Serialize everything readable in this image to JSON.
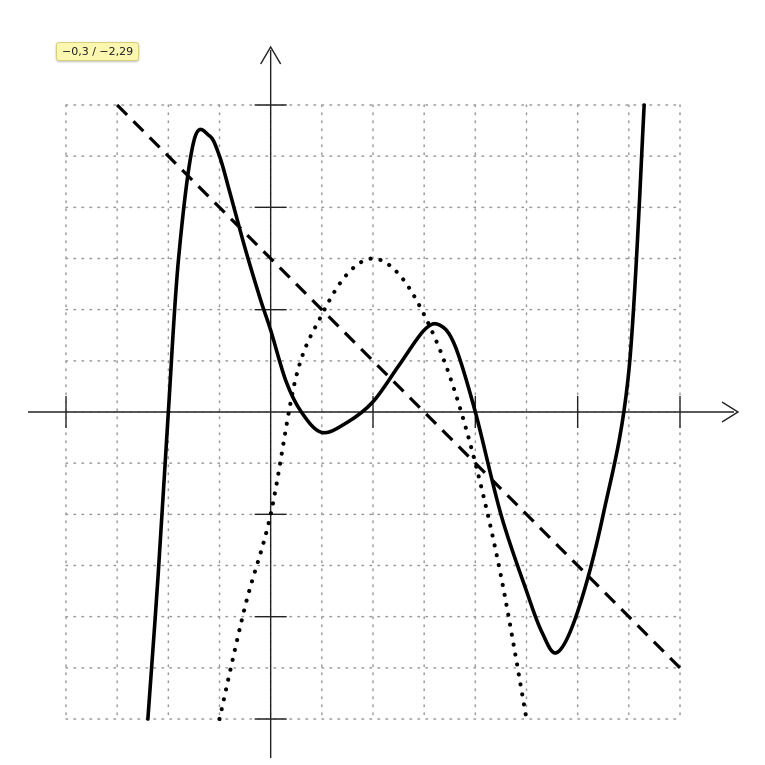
{
  "readout": {
    "coordinates": "−0,3 / −2,29"
  },
  "chart_data": {
    "type": "line",
    "title": "",
    "xlabel": "",
    "ylabel": "",
    "xlim": [
      -4,
      8
    ],
    "ylim": [
      -6,
      6
    ],
    "grid": true,
    "grid_style": "dotted",
    "axes": {
      "x_arrow": true,
      "y_arrow": true
    },
    "x_ticks": [
      -4,
      -2,
      2,
      4,
      6,
      8
    ],
    "y_ticks": [
      -6,
      -4,
      -2,
      2,
      4,
      6
    ],
    "series": [
      {
        "style": "solid",
        "color": "#000000",
        "x": [
          -2.4,
          -2.2,
          -2.0,
          -1.8,
          -1.5,
          -1.2,
          -1.0,
          -0.8,
          -0.5,
          -0.2,
          0.0,
          0.3,
          0.6,
          1.0,
          1.5,
          2.0,
          2.5,
          3.0,
          3.3,
          3.6,
          4.0,
          4.5,
          5.0,
          5.3,
          5.6,
          6.0,
          6.5,
          7.0,
          7.3
        ],
        "y": [
          -6.0,
          -3.2,
          0.0,
          3.0,
          5.3,
          5.4,
          5.0,
          4.3,
          3.2,
          2.2,
          1.6,
          0.6,
          0.0,
          -0.4,
          -0.2,
          0.2,
          0.9,
          1.6,
          1.7,
          1.3,
          0.0,
          -2.0,
          -3.5,
          -4.3,
          -4.7,
          -3.9,
          -2.0,
          0.8,
          6.0
        ]
      },
      {
        "style": "dashed",
        "color": "#000000",
        "x": [
          -3.0,
          8.0
        ],
        "y": [
          6.0,
          -5.0
        ]
      },
      {
        "style": "dotted",
        "color": "#000000",
        "x": [
          -1.0,
          -0.5,
          0.0,
          0.5,
          1.0,
          1.5,
          2.0,
          2.5,
          3.0,
          3.5,
          4.0,
          4.5,
          5.0
        ],
        "y": [
          -6.0,
          -3.8,
          -2.0,
          0.7,
          1.9,
          2.7,
          3.0,
          2.7,
          1.9,
          0.7,
          -1.0,
          -3.2,
          -6.0
        ]
      }
    ]
  }
}
